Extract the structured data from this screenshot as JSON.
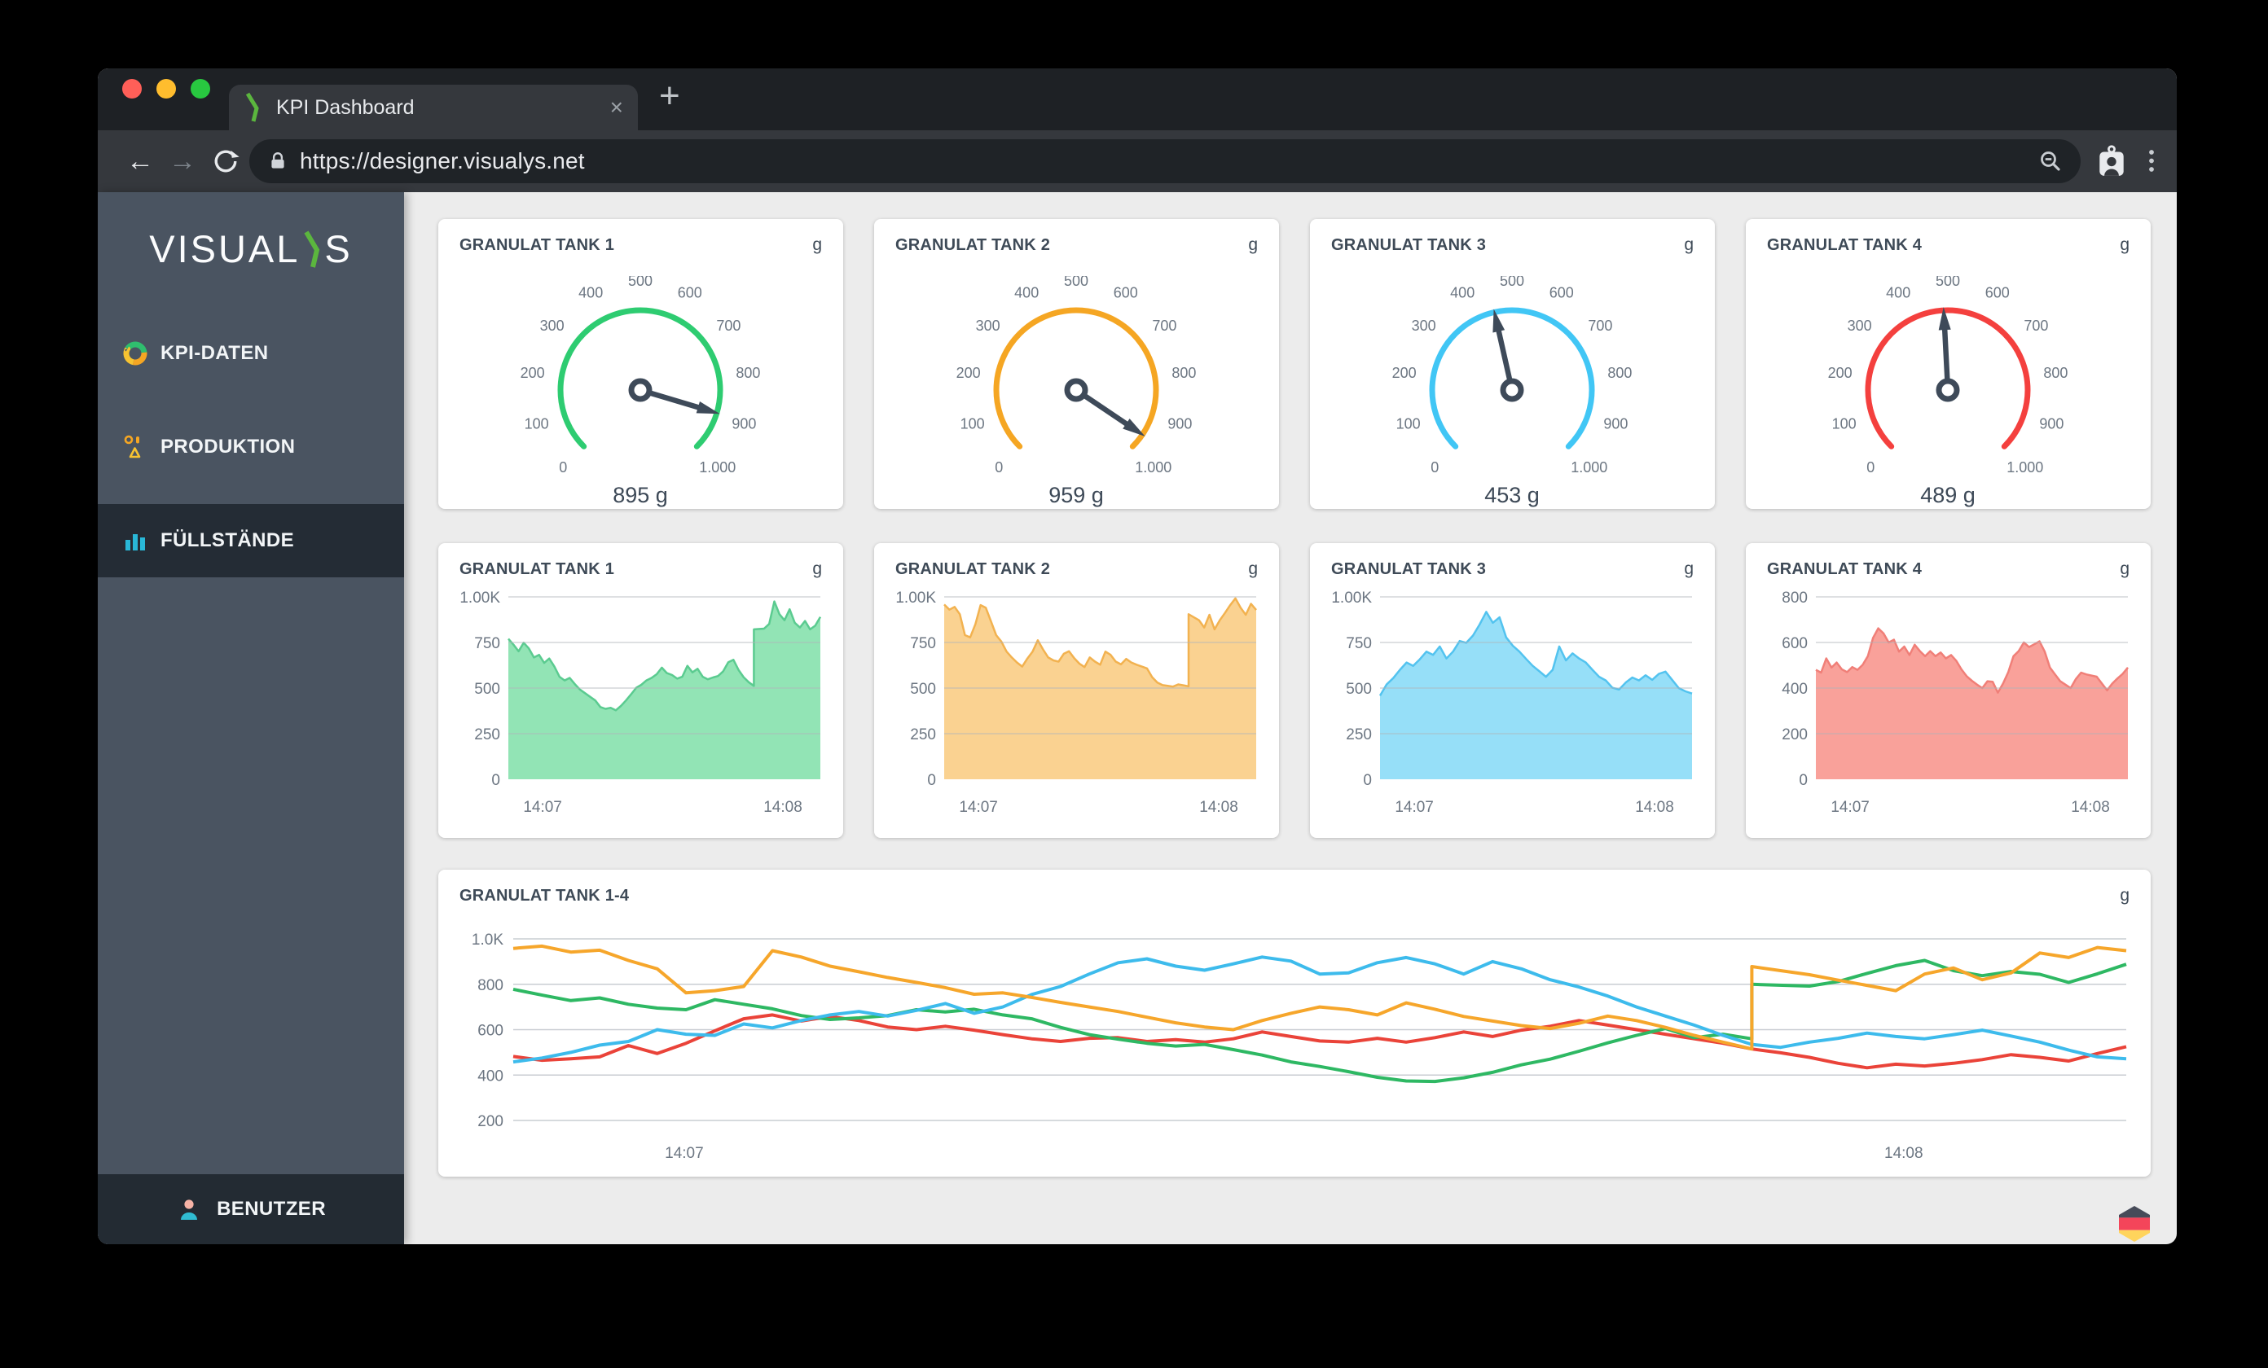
{
  "browser": {
    "traffic_lights": [
      "#FF5F58",
      "#FFBD2E",
      "#28C840"
    ],
    "tab": {
      "title": "KPI Dashboard",
      "close_glyph": "×"
    },
    "new_tab_glyph": "+",
    "nav": {
      "back_glyph": "←",
      "forward_glyph": "→"
    },
    "url": "https://designer.visualys.net"
  },
  "sidebar": {
    "logo": {
      "pre": "VISUAL",
      "suffix": "S",
      "accent_color": "#5BB63E"
    },
    "items": [
      {
        "label": "KPI-DATEN",
        "icon": "donut-chart-icon"
      },
      {
        "label": "PRODUKTION",
        "icon": "production-icon"
      },
      {
        "label": "FÜLLSTÄNDE",
        "icon": "bar-chart-icon",
        "active": true
      }
    ],
    "footer_label": "BENUTZER"
  },
  "gauge_ticks": [
    {
      "v": 0,
      "label": "0"
    },
    {
      "v": 100,
      "label": "100"
    },
    {
      "v": 200,
      "label": "200"
    },
    {
      "v": 300,
      "label": "300"
    },
    {
      "v": 400,
      "label": "400"
    },
    {
      "v": 500,
      "label": "500"
    },
    {
      "v": 600,
      "label": "600"
    },
    {
      "v": 700,
      "label": "700"
    },
    {
      "v": 800,
      "label": "800"
    },
    {
      "v": 900,
      "label": "900"
    },
    {
      "v": 1000,
      "label": "1.000"
    }
  ],
  "gauges": [
    {
      "title": "GRANULAT TANK 1",
      "unit": "g",
      "value": 895,
      "value_label": "895 g",
      "min": 0,
      "max": 1000,
      "color": "#2ECC71"
    },
    {
      "title": "GRANULAT TANK 2",
      "unit": "g",
      "value": 959,
      "value_label": "959 g",
      "min": 0,
      "max": 1000,
      "color": "#F5A623"
    },
    {
      "title": "GRANULAT TANK 3",
      "unit": "g",
      "value": 453,
      "value_label": "453 g",
      "min": 0,
      "max": 1000,
      "color": "#41C6F5"
    },
    {
      "title": "GRANULAT TANK 4",
      "unit": "g",
      "value": 489,
      "value_label": "489 g",
      "min": 0,
      "max": 1000,
      "color": "#F4403E"
    }
  ],
  "area_charts": [
    {
      "title": "GRANULAT TANK 1",
      "unit": "g",
      "line_color": "#5BCB90",
      "fill_color": "rgba(46,204,113,0.52)",
      "ymax": 1000,
      "jump_index": 49,
      "y_ticks": [
        {
          "v": 1000,
          "label": "1.00K"
        },
        {
          "v": 750,
          "label": "750"
        },
        {
          "v": 500,
          "label": "500"
        },
        {
          "v": 250,
          "label": "250"
        },
        {
          "v": 0,
          "label": "0"
        }
      ],
      "x_ticks": [
        {
          "p": 0.11,
          "label": "14:07"
        },
        {
          "p": 0.88,
          "label": "14:08"
        }
      ],
      "values": [
        770,
        738,
        702,
        748,
        718,
        668,
        682,
        638,
        662,
        618,
        562,
        542,
        556,
        522,
        492,
        472,
        452,
        432,
        396,
        386,
        392,
        378,
        402,
        432,
        466,
        502,
        518,
        542,
        556,
        576,
        612,
        582,
        572,
        552,
        562,
        622,
        586,
        606,
        562,
        548,
        558,
        566,
        592,
        642,
        655,
        600,
        560,
        532,
        512,
        822,
        826,
        852,
        975,
        905,
        872,
        932,
        858,
        832,
        868,
        822,
        842,
        890
      ]
    },
    {
      "title": "GRANULAT TANK 2",
      "unit": "g",
      "line_color": "#F2B250",
      "fill_color": "rgba(245,166,35,0.5)",
      "ymax": 1000,
      "jump_index": 48,
      "y_ticks": [
        {
          "v": 1000,
          "label": "1.00K"
        },
        {
          "v": 750,
          "label": "750"
        },
        {
          "v": 500,
          "label": "500"
        },
        {
          "v": 250,
          "label": "250"
        },
        {
          "v": 0,
          "label": "0"
        }
      ],
      "x_ticks": [
        {
          "p": 0.11,
          "label": "14:07"
        },
        {
          "p": 0.88,
          "label": "14:08"
        }
      ],
      "values": [
        958,
        930,
        945,
        905,
        790,
        778,
        850,
        955,
        940,
        865,
        790,
        755,
        700,
        668,
        640,
        618,
        662,
        700,
        762,
        712,
        668,
        652,
        645,
        688,
        702,
        664,
        634,
        615,
        668,
        645,
        628,
        700,
        682,
        645,
        630,
        660,
        640,
        628,
        618,
        608,
        560,
        530,
        516,
        512,
        508,
        520,
        515,
        510,
        905,
        872,
        832,
        902,
        822,
        872,
        912,
        955,
        992,
        940,
        902,
        962,
        928
      ]
    },
    {
      "title": "GRANULAT TANK 3",
      "unit": "g",
      "line_color": "#53C3EF",
      "fill_color": "rgba(63,197,242,0.55)",
      "ymax": 1000,
      "jump_index": null,
      "y_ticks": [
        {
          "v": 1000,
          "label": "1.00K"
        },
        {
          "v": 750,
          "label": "750"
        },
        {
          "v": 500,
          "label": "500"
        },
        {
          "v": 250,
          "label": "250"
        },
        {
          "v": 0,
          "label": "0"
        }
      ],
      "x_ticks": [
        {
          "p": 0.11,
          "label": "14:07"
        },
        {
          "p": 0.88,
          "label": "14:08"
        }
      ],
      "values": [
        458,
        520,
        555,
        600,
        640,
        622,
        658,
        700,
        682,
        728,
        662,
        700,
        758,
        748,
        788,
        848,
        918,
        858,
        888,
        778,
        732,
        700,
        660,
        622,
        592,
        562,
        600,
        728,
        652,
        690,
        662,
        640,
        600,
        562,
        542,
        502,
        492,
        530,
        558,
        542,
        570,
        545,
        578,
        590,
        545,
        500,
        482,
        470
      ]
    },
    {
      "title": "GRANULAT TANK 4",
      "unit": "g",
      "line_color": "#F07F78",
      "fill_color": "rgba(244,67,54,0.5)",
      "ymax": 800,
      "jump_index": null,
      "y_ticks": [
        {
          "v": 800,
          "label": "800"
        },
        {
          "v": 600,
          "label": "600"
        },
        {
          "v": 400,
          "label": "400"
        },
        {
          "v": 200,
          "label": "200"
        },
        {
          "v": 0,
          "label": "0"
        }
      ],
      "x_ticks": [
        {
          "p": 0.11,
          "label": "14:07"
        },
        {
          "p": 0.88,
          "label": "14:08"
        }
      ],
      "values": [
        480,
        468,
        530,
        490,
        512,
        482,
        470,
        492,
        480,
        502,
        540,
        620,
        662,
        640,
        600,
        612,
        560,
        582,
        545,
        590,
        562,
        540,
        562,
        540,
        556,
        530,
        545,
        520,
        482,
        452,
        432,
        415,
        400,
        430,
        428,
        380,
        420,
        470,
        540,
        562,
        600,
        580,
        592,
        605,
        560,
        490,
        460,
        430,
        415,
        400,
        440,
        468,
        460,
        455,
        450,
        420,
        390,
        420,
        442,
        462,
        490
      ]
    }
  ],
  "combined_chart": {
    "title": "GRANULAT TANK 1-4",
    "unit": "g",
    "ymax": 1000,
    "ymin": 200,
    "y_ticks": [
      {
        "v": 1000,
        "label": "1.0K"
      },
      {
        "v": 800,
        "label": "800"
      },
      {
        "v": 600,
        "label": "600"
      },
      {
        "v": 400,
        "label": "400"
      },
      {
        "v": 200,
        "label": "200"
      }
    ],
    "x_ticks": [
      {
        "p": 0.106,
        "label": "14:07"
      },
      {
        "p": 0.862,
        "label": "14:08"
      }
    ],
    "series": [
      {
        "name": "GRANULAT TANK 4",
        "color": "#EA4339",
        "jump_index": null,
        "values": [
          482,
          465,
          472,
          480,
          530,
          495,
          540,
          595,
          648,
          665,
          638,
          658,
          640,
          612,
          600,
          615,
          598,
          578,
          560,
          548,
          562,
          565,
          548,
          556,
          545,
          560,
          590,
          570,
          550,
          545,
          562,
          545,
          565,
          590,
          570,
          598,
          615,
          640,
          620,
          600,
          580,
          560,
          540,
          515,
          498,
          478,
          452,
          432,
          448,
          440,
          452,
          468,
          490,
          478,
          462,
          495,
          525
        ]
      },
      {
        "name": "GRANULAT TANK 1",
        "color": "#2EB863",
        "jump_index": 44,
        "values": [
          778,
          752,
          728,
          740,
          712,
          695,
          688,
          732,
          712,
          692,
          662,
          645,
          652,
          662,
          688,
          678,
          690,
          665,
          648,
          610,
          578,
          558,
          540,
          528,
          535,
          512,
          488,
          458,
          438,
          415,
          390,
          374,
          372,
          388,
          412,
          445,
          470,
          505,
          542,
          575,
          605,
          565,
          580,
          560,
          800,
          792,
          812,
          848,
          882,
          905,
          860,
          838,
          856,
          844,
          808,
          846,
          888
        ]
      },
      {
        "name": "GRANULAT TANK 3",
        "color": "#3DBBEC",
        "jump_index": null,
        "values": [
          458,
          475,
          500,
          532,
          548,
          600,
          580,
          575,
          625,
          608,
          640,
          665,
          680,
          660,
          685,
          715,
          672,
          700,
          755,
          790,
          845,
          895,
          912,
          880,
          862,
          890,
          920,
          902,
          845,
          850,
          895,
          918,
          890,
          845,
          900,
          868,
          820,
          788,
          748,
          700,
          660,
          620,
          575,
          535,
          522,
          545,
          562,
          585,
          570,
          560,
          578,
          598,
          572,
          545,
          510,
          480,
          472
        ]
      },
      {
        "name": "GRANULAT TANK 2",
        "color": "#F6A62B",
        "jump_index": 44,
        "values": [
          958,
          968,
          942,
          950,
          905,
          868,
          762,
          772,
          790,
          948,
          920,
          880,
          855,
          830,
          808,
          785,
          756,
          762,
          742,
          720,
          700,
          680,
          655,
          630,
          612,
          600,
          640,
          672,
          700,
          688,
          665,
          718,
          690,
          658,
          638,
          618,
          605,
          628,
          660,
          640,
          610,
          575,
          545,
          515,
          878,
          842,
          818,
          795,
          772,
          845,
          872,
          820,
          850,
          938,
          918,
          962,
          948
        ]
      }
    ]
  },
  "footer": {
    "language_flag": "german-flag-icon"
  }
}
